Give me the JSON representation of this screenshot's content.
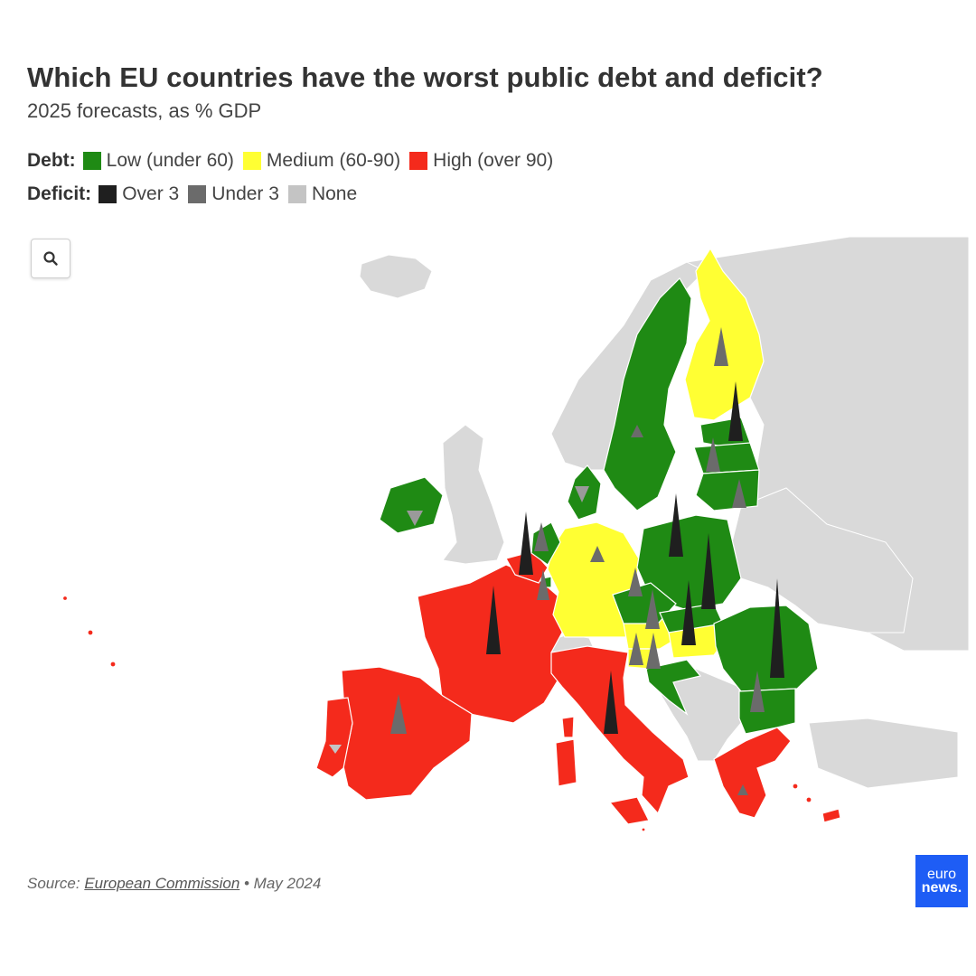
{
  "title": "Which EU countries have the worst public debt and deficit?",
  "subtitle": "2025 forecasts, as % GDP",
  "legend": {
    "debt_label": "Debt:",
    "debt_items": [
      {
        "label": "Low (under 60)",
        "color": "#1f8a14"
      },
      {
        "label": "Medium (60-90)",
        "color": "#ffff33"
      },
      {
        "label": "High (over 90)",
        "color": "#f42a1c"
      }
    ],
    "deficit_label": "Deficit:",
    "deficit_items": [
      {
        "label": "Over 3",
        "color": "#1f1f1f"
      },
      {
        "label": "Under 3",
        "color": "#6b6b6b"
      },
      {
        "label": "None",
        "color": "#c4c4c4"
      }
    ]
  },
  "zoom_icon": "search-icon",
  "source": {
    "prefix": "Source: ",
    "link": "European Commission",
    "suffix": " • May 2024"
  },
  "logo": {
    "line1": "euro",
    "line2": "news."
  },
  "colors": {
    "non_eu": "#d9d9d9",
    "border": "#ffffff"
  }
}
